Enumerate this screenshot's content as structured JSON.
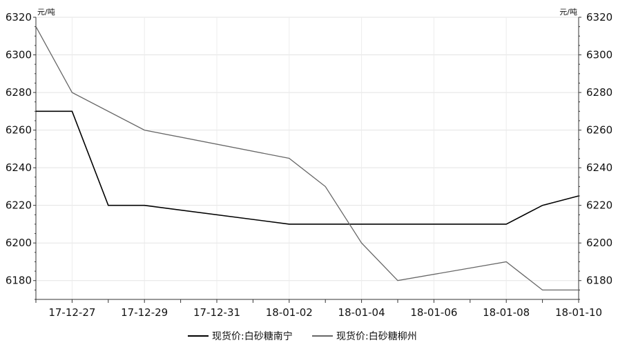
{
  "chart_data": {
    "type": "line",
    "unit_left": "元/吨",
    "unit_right": "元/吨",
    "ylim": [
      6170,
      6320
    ],
    "y_ticks": [
      "6320",
      "6300",
      "6280",
      "6260",
      "6240",
      "6220",
      "6200",
      "6180"
    ],
    "x_tick_labels": [
      "17-12-27",
      "17-12-29",
      "17-12-31",
      "18-01-02",
      "18-01-04",
      "18-01-06",
      "18-01-08",
      "18-01-10"
    ],
    "xlim": [
      "17-12-26",
      "18-01-10"
    ],
    "grid": true,
    "legend_position": "bottom",
    "series": [
      {
        "name": "现货价:白砂糖南宁",
        "color": "#000000",
        "x": [
          "17-12-26",
          "17-12-27",
          "17-12-28",
          "17-12-29",
          "18-01-02",
          "18-01-08",
          "18-01-09",
          "18-01-10"
        ],
        "values": [
          6270,
          6270,
          6220,
          6220,
          6210,
          6210,
          6220,
          6225
        ]
      },
      {
        "name": "现货价:白砂糖柳州",
        "color": "#666666",
        "x": [
          "17-12-26",
          "17-12-27",
          "17-12-29",
          "18-01-02",
          "18-01-03",
          "18-01-04",
          "18-01-05",
          "18-01-08",
          "18-01-09",
          "18-01-10"
        ],
        "values": [
          6315,
          6280,
          6260,
          6245,
          6230,
          6200,
          6180,
          6190,
          6175,
          6175
        ]
      }
    ]
  }
}
